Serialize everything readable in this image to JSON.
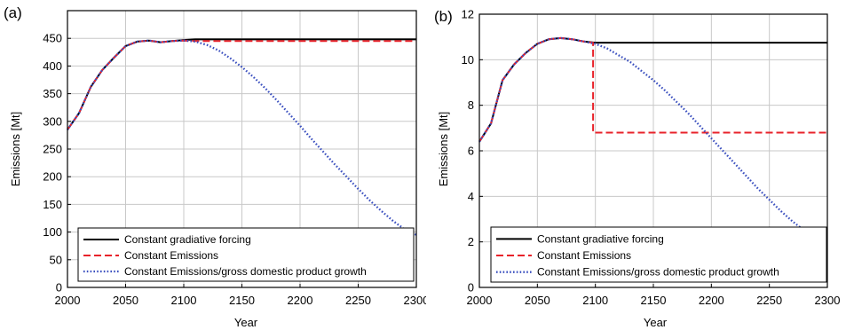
{
  "legend_labels": {
    "forcing": "Constant gradiative forcing",
    "emissions": "Constant Emissions",
    "gdp": "Constant Emissions/gross domestic product growth"
  },
  "colors": {
    "forcing": "#000000",
    "emissions": "#e8222a",
    "gdp": "#3a4fbf",
    "grid": "#c8c8c8"
  },
  "chart_data": [
    {
      "panel_label": "(a)",
      "type": "line",
      "xlabel": "Year",
      "ylabel": "Emissions [Mt]",
      "xlim": [
        2000,
        2300
      ],
      "ylim": [
        0,
        500
      ],
      "xticks": [
        2000,
        2050,
        2100,
        2150,
        2200,
        2250,
        2300
      ],
      "yticks": [
        0,
        50,
        100,
        150,
        200,
        250,
        300,
        350,
        400,
        450
      ],
      "grid": true,
      "legend_position": "bottom",
      "series": [
        {
          "key": "forcing",
          "name": "Constant gradiative forcing",
          "style": "solid",
          "x": [
            2000,
            2010,
            2020,
            2030,
            2040,
            2050,
            2060,
            2070,
            2080,
            2090,
            2100,
            2110,
            2120,
            2300
          ],
          "y": [
            285,
            315,
            362,
            393,
            415,
            436,
            444,
            446,
            443,
            445,
            447,
            448,
            448,
            448
          ]
        },
        {
          "key": "emissions",
          "name": "Constant Emissions",
          "style": "dashed",
          "x": [
            2000,
            2010,
            2020,
            2030,
            2040,
            2050,
            2060,
            2070,
            2080,
            2090,
            2100,
            2110,
            2120,
            2300
          ],
          "y": [
            285,
            315,
            362,
            393,
            415,
            436,
            444,
            446,
            443,
            445,
            446,
            445,
            445,
            445
          ]
        },
        {
          "key": "gdp",
          "name": "Constant Emissions/gross domestic product growth",
          "style": "dotted",
          "x": [
            2000,
            2010,
            2020,
            2030,
            2040,
            2050,
            2060,
            2070,
            2080,
            2090,
            2100,
            2110,
            2120,
            2130,
            2140,
            2150,
            2160,
            2170,
            2180,
            2190,
            2200,
            2210,
            2220,
            2230,
            2240,
            2250,
            2260,
            2270,
            2280,
            2290,
            2300
          ],
          "y": [
            285,
            315,
            362,
            393,
            415,
            436,
            444,
            446,
            443,
            445,
            446,
            444,
            438,
            428,
            414,
            398,
            380,
            360,
            338,
            315,
            292,
            268,
            245,
            222,
            200,
            178,
            157,
            138,
            120,
            105,
            95
          ]
        }
      ]
    },
    {
      "panel_label": "(b)",
      "type": "line",
      "xlabel": "Year",
      "ylabel": "Emissions [Mt]",
      "xlim": [
        2000,
        2300
      ],
      "ylim": [
        0,
        12
      ],
      "xticks": [
        2000,
        2050,
        2100,
        2150,
        2200,
        2250,
        2300
      ],
      "yticks": [
        0,
        2,
        4,
        6,
        8,
        10,
        12
      ],
      "grid": true,
      "legend_position": "bottom",
      "series": [
        {
          "key": "forcing",
          "name": "Constant gradiative forcing",
          "style": "solid",
          "x": [
            2000,
            2010,
            2020,
            2030,
            2040,
            2050,
            2060,
            2070,
            2080,
            2090,
            2100,
            2300
          ],
          "y": [
            6.4,
            7.2,
            9.1,
            9.8,
            10.3,
            10.7,
            10.9,
            10.95,
            10.9,
            10.8,
            10.75,
            10.75
          ]
        },
        {
          "key": "emissions",
          "name": "Constant Emissions",
          "style": "dashed",
          "x": [
            2000,
            2010,
            2020,
            2030,
            2040,
            2050,
            2060,
            2070,
            2080,
            2090,
            2098,
            2098,
            2300
          ],
          "y": [
            6.4,
            7.2,
            9.1,
            9.8,
            10.3,
            10.7,
            10.9,
            10.95,
            10.9,
            10.8,
            10.75,
            6.8,
            6.8
          ]
        },
        {
          "key": "gdp",
          "name": "Constant Emissions/gross domestic product growth",
          "style": "dotted",
          "x": [
            2000,
            2010,
            2020,
            2030,
            2040,
            2050,
            2060,
            2070,
            2080,
            2090,
            2100,
            2110,
            2120,
            2130,
            2140,
            2150,
            2160,
            2170,
            2180,
            2190,
            2200,
            2210,
            2220,
            2230,
            2240,
            2250,
            2260,
            2270,
            2280,
            2290,
            2300
          ],
          "y": [
            6.4,
            7.2,
            9.1,
            9.8,
            10.3,
            10.7,
            10.9,
            10.95,
            10.9,
            10.8,
            10.7,
            10.5,
            10.2,
            9.9,
            9.5,
            9.1,
            8.65,
            8.15,
            7.65,
            7.1,
            6.55,
            6.0,
            5.45,
            4.9,
            4.35,
            3.85,
            3.35,
            2.9,
            2.5,
            2.2,
            1.95
          ]
        }
      ]
    }
  ]
}
